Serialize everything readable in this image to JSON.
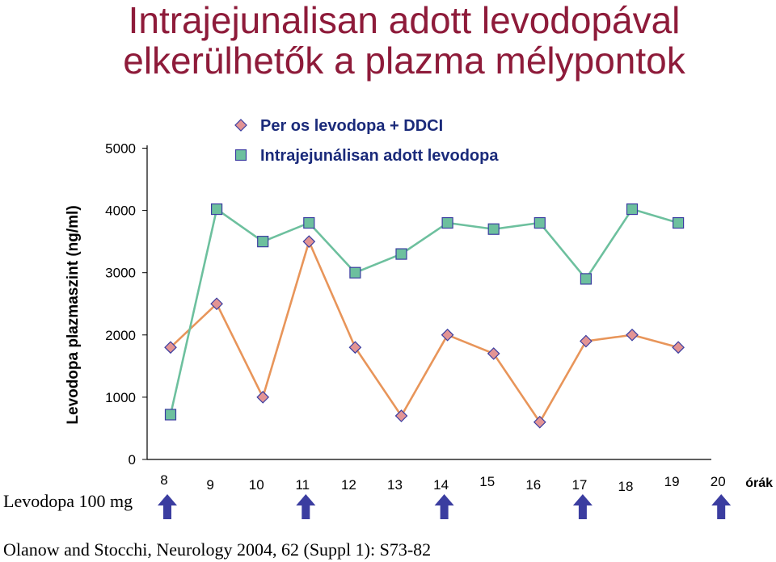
{
  "title": {
    "line1": "Intrajejunalisan adott levodopával",
    "line2": "elkerülhetők a plazma mélypontok"
  },
  "chart_data": {
    "type": "line",
    "ylabel": "Levodopa plazmaszint (ng/ml)",
    "xlabel": "órák",
    "ylim": [
      0,
      5000
    ],
    "yticks": [
      "0",
      "1000",
      "2000",
      "3000",
      "4000",
      "5000"
    ],
    "x": [
      8,
      9,
      10,
      11,
      12,
      13,
      14,
      15,
      16,
      17,
      18,
      19,
      20
    ],
    "xtick_labels": [
      "8",
      "9",
      "10",
      "11",
      "12",
      "13",
      "14",
      "15",
      "16",
      "17",
      "18",
      "19",
      "20"
    ],
    "legend_position": "top",
    "series": [
      {
        "name": "Per os levodopa + DDCI",
        "marker": "diamond",
        "color": "#e8955a",
        "fill": "#e39494",
        "points": [
          [
            8,
            1800
          ],
          [
            9,
            2500
          ],
          [
            10,
            1000
          ],
          [
            11,
            3500
          ],
          [
            12,
            1800
          ],
          [
            13,
            700
          ],
          [
            14,
            2000
          ],
          [
            15,
            1700
          ],
          [
            16,
            600
          ],
          [
            17,
            1900
          ],
          [
            18,
            2000
          ],
          [
            19,
            1800
          ]
        ]
      },
      {
        "name": "Intrajejunálisan adott levodopa",
        "marker": "square",
        "color": "#6dc09e",
        "fill": "#6dc09e",
        "points": [
          [
            8,
            720
          ],
          [
            9,
            4020
          ],
          [
            10,
            3500
          ],
          [
            11,
            3800
          ],
          [
            12,
            3000
          ],
          [
            13,
            3300
          ],
          [
            14,
            3800
          ],
          [
            15,
            3700
          ],
          [
            16,
            3800
          ],
          [
            17,
            2900
          ],
          [
            18,
            4020
          ],
          [
            19,
            3800
          ]
        ]
      }
    ],
    "dose_label": "Levodopa 100 mg",
    "dose_hours": [
      8,
      11,
      14,
      17,
      20
    ],
    "arrow_color": "#3b3da0"
  },
  "footer": "Olanow and Stocchi, Neurology 2004, 62 (Suppl 1): S73-82"
}
